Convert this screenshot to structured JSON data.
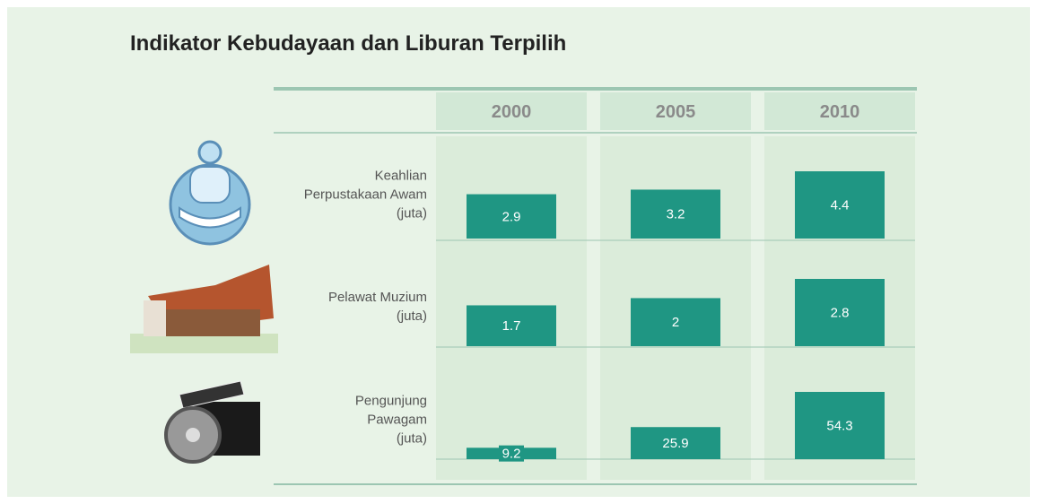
{
  "chart_data": {
    "type": "bar",
    "title": "Indikator Kebudayaan dan Liburan Terpilih",
    "categories": [
      "2000",
      "2005",
      "2010"
    ],
    "series": [
      {
        "name": "Keahlian\nPerpustakaan Awam\n(juta)",
        "color": "#1f9683",
        "values": [
          2.9,
          3.2,
          4.4
        ]
      },
      {
        "name": "Pelawat Muzium\n(juta)",
        "color": "#1f9683",
        "values": [
          1.7,
          2.0,
          2.8
        ]
      },
      {
        "name": "Pengunjung\nPawagam\n(juta)",
        "color": "#1f9683",
        "values": [
          9.2,
          25.9,
          54.3
        ]
      }
    ]
  }
}
